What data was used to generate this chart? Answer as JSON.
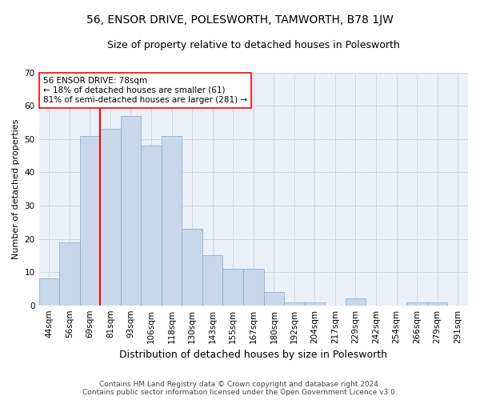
{
  "title": "56, ENSOR DRIVE, POLESWORTH, TAMWORTH, B78 1JW",
  "subtitle": "Size of property relative to detached houses in Polesworth",
  "xlabel": "Distribution of detached houses by size in Polesworth",
  "ylabel": "Number of detached properties",
  "categories": [
    "44sqm",
    "56sqm",
    "69sqm",
    "81sqm",
    "93sqm",
    "106sqm",
    "118sqm",
    "130sqm",
    "143sqm",
    "155sqm",
    "167sqm",
    "180sqm",
    "192sqm",
    "204sqm",
    "217sqm",
    "229sqm",
    "242sqm",
    "254sqm",
    "266sqm",
    "279sqm",
    "291sqm"
  ],
  "values": [
    8,
    19,
    51,
    53,
    57,
    48,
    51,
    23,
    15,
    11,
    11,
    4,
    1,
    1,
    0,
    2,
    0,
    0,
    1,
    1,
    0
  ],
  "bar_color": "#c8d8ea",
  "bar_edge_color": "#7aaac8",
  "red_line_index": 3,
  "annotation_line1": "56 ENSOR DRIVE: 78sqm",
  "annotation_line2": "← 18% of detached houses are smaller (61)",
  "annotation_line3": "81% of semi-detached houses are larger (281) →",
  "ylim": [
    0,
    70
  ],
  "yticks": [
    0,
    10,
    20,
    30,
    40,
    50,
    60,
    70
  ],
  "grid_color": "#ccd8e8",
  "background_color": "#eaf0f8",
  "footer1": "Contains HM Land Registry data © Crown copyright and database right 2024.",
  "footer2": "Contains public sector information licensed under the Open Government Licence v3.0.",
  "title_fontsize": 10,
  "subtitle_fontsize": 9,
  "tick_fontsize": 7.5,
  "ylabel_fontsize": 8,
  "xlabel_fontsize": 9,
  "footer_fontsize": 6.5
}
